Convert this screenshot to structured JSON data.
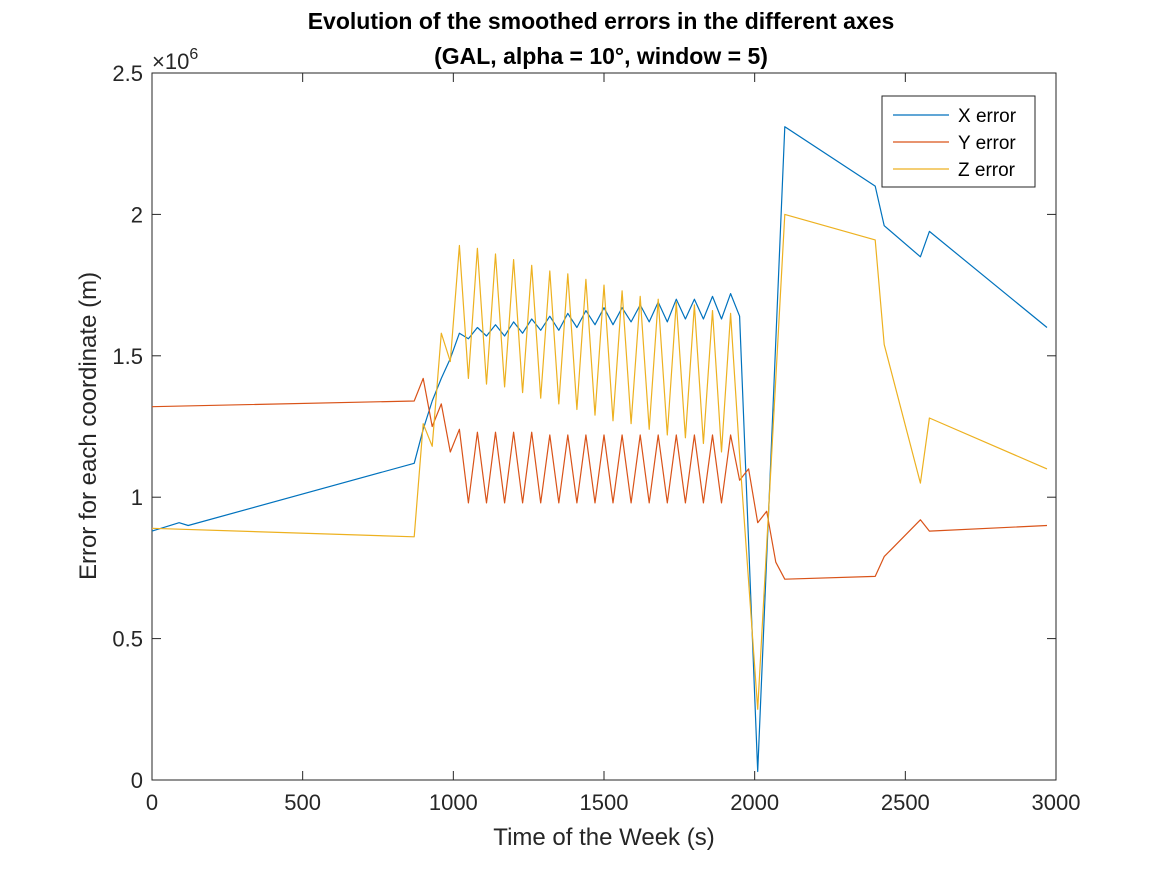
{
  "chart_data": {
    "type": "line",
    "title": "Evolution of the smoothed errors in the different axes",
    "subtitle": "(GAL, alpha = 10°, window = 5)",
    "xlabel": "Time of the Week (s)",
    "ylabel": "Error for each coordinate (m)",
    "xlim": [
      0,
      3000
    ],
    "ylim": [
      0,
      2500000
    ],
    "xticks": [
      0,
      500,
      1000,
      1500,
      2000,
      2500,
      3000
    ],
    "xtick_labels": [
      "0",
      "500",
      "1000",
      "1500",
      "2000",
      "2500",
      "3000"
    ],
    "yticks": [
      0,
      500000,
      1000000,
      1500000,
      2000000,
      2500000
    ],
    "ytick_labels": [
      "0",
      "0.5",
      "1",
      "1.5",
      "2",
      "2.5"
    ],
    "y_exponent_label": "×10",
    "y_exponent_power": "6",
    "grid": false,
    "legend_position": "top-right",
    "series": [
      {
        "name": "X error",
        "color": "#0072BD",
        "x": [
          0,
          30,
          90,
          120,
          870,
          900,
          930,
          960,
          990,
          1020,
          1050,
          1080,
          1110,
          1140,
          1170,
          1200,
          1230,
          1260,
          1290,
          1320,
          1350,
          1380,
          1410,
          1440,
          1470,
          1500,
          1530,
          1560,
          1590,
          1620,
          1650,
          1680,
          1710,
          1740,
          1770,
          1800,
          1830,
          1860,
          1890,
          1920,
          1950,
          2010,
          2100,
          2400,
          2430,
          2550,
          2580,
          2970
        ],
        "values": [
          880000,
          890000,
          910000,
          900000,
          1120000,
          1240000,
          1340000,
          1420000,
          1490000,
          1580000,
          1560000,
          1600000,
          1570000,
          1610000,
          1570000,
          1620000,
          1580000,
          1630000,
          1590000,
          1640000,
          1590000,
          1650000,
          1600000,
          1660000,
          1610000,
          1670000,
          1610000,
          1670000,
          1620000,
          1680000,
          1620000,
          1690000,
          1620000,
          1700000,
          1630000,
          1700000,
          1630000,
          1710000,
          1630000,
          1720000,
          1640000,
          30000,
          2310000,
          2100000,
          1960000,
          1850000,
          1940000,
          1600000
        ]
      },
      {
        "name": "Y error",
        "color": "#D95319",
        "x": [
          0,
          870,
          900,
          930,
          960,
          990,
          1020,
          1050,
          1080,
          1110,
          1140,
          1170,
          1200,
          1230,
          1260,
          1290,
          1320,
          1350,
          1380,
          1410,
          1440,
          1470,
          1500,
          1530,
          1560,
          1590,
          1620,
          1650,
          1680,
          1710,
          1740,
          1770,
          1800,
          1830,
          1860,
          1890,
          1920,
          1950,
          1980,
          2010,
          2040,
          2070,
          2100,
          2400,
          2430,
          2550,
          2580,
          2970
        ],
        "values": [
          1320000,
          1340000,
          1420000,
          1250000,
          1330000,
          1160000,
          1240000,
          980000,
          1230000,
          980000,
          1230000,
          980000,
          1230000,
          980000,
          1230000,
          980000,
          1220000,
          980000,
          1220000,
          980000,
          1220000,
          980000,
          1220000,
          980000,
          1220000,
          980000,
          1220000,
          980000,
          1220000,
          980000,
          1220000,
          980000,
          1220000,
          980000,
          1220000,
          980000,
          1220000,
          1060000,
          1100000,
          910000,
          950000,
          770000,
          710000,
          720000,
          790000,
          920000,
          880000,
          900000
        ]
      },
      {
        "name": "Z error",
        "color": "#EDB120",
        "x": [
          0,
          870,
          900,
          930,
          960,
          990,
          1020,
          1050,
          1080,
          1110,
          1140,
          1170,
          1200,
          1230,
          1260,
          1290,
          1320,
          1350,
          1380,
          1410,
          1440,
          1470,
          1500,
          1530,
          1560,
          1590,
          1620,
          1650,
          1680,
          1710,
          1740,
          1770,
          1800,
          1830,
          1860,
          1890,
          1920,
          1950,
          2010,
          2100,
          2400,
          2430,
          2550,
          2580,
          2970
        ],
        "values": [
          890000,
          860000,
          1260000,
          1180000,
          1580000,
          1480000,
          1890000,
          1420000,
          1880000,
          1400000,
          1860000,
          1390000,
          1840000,
          1370000,
          1820000,
          1350000,
          1800000,
          1330000,
          1790000,
          1310000,
          1770000,
          1290000,
          1750000,
          1270000,
          1730000,
          1260000,
          1710000,
          1240000,
          1700000,
          1220000,
          1690000,
          1210000,
          1680000,
          1190000,
          1660000,
          1160000,
          1650000,
          1150000,
          250000,
          2000000,
          1910000,
          1540000,
          1050000,
          1280000,
          1100000
        ]
      }
    ]
  }
}
